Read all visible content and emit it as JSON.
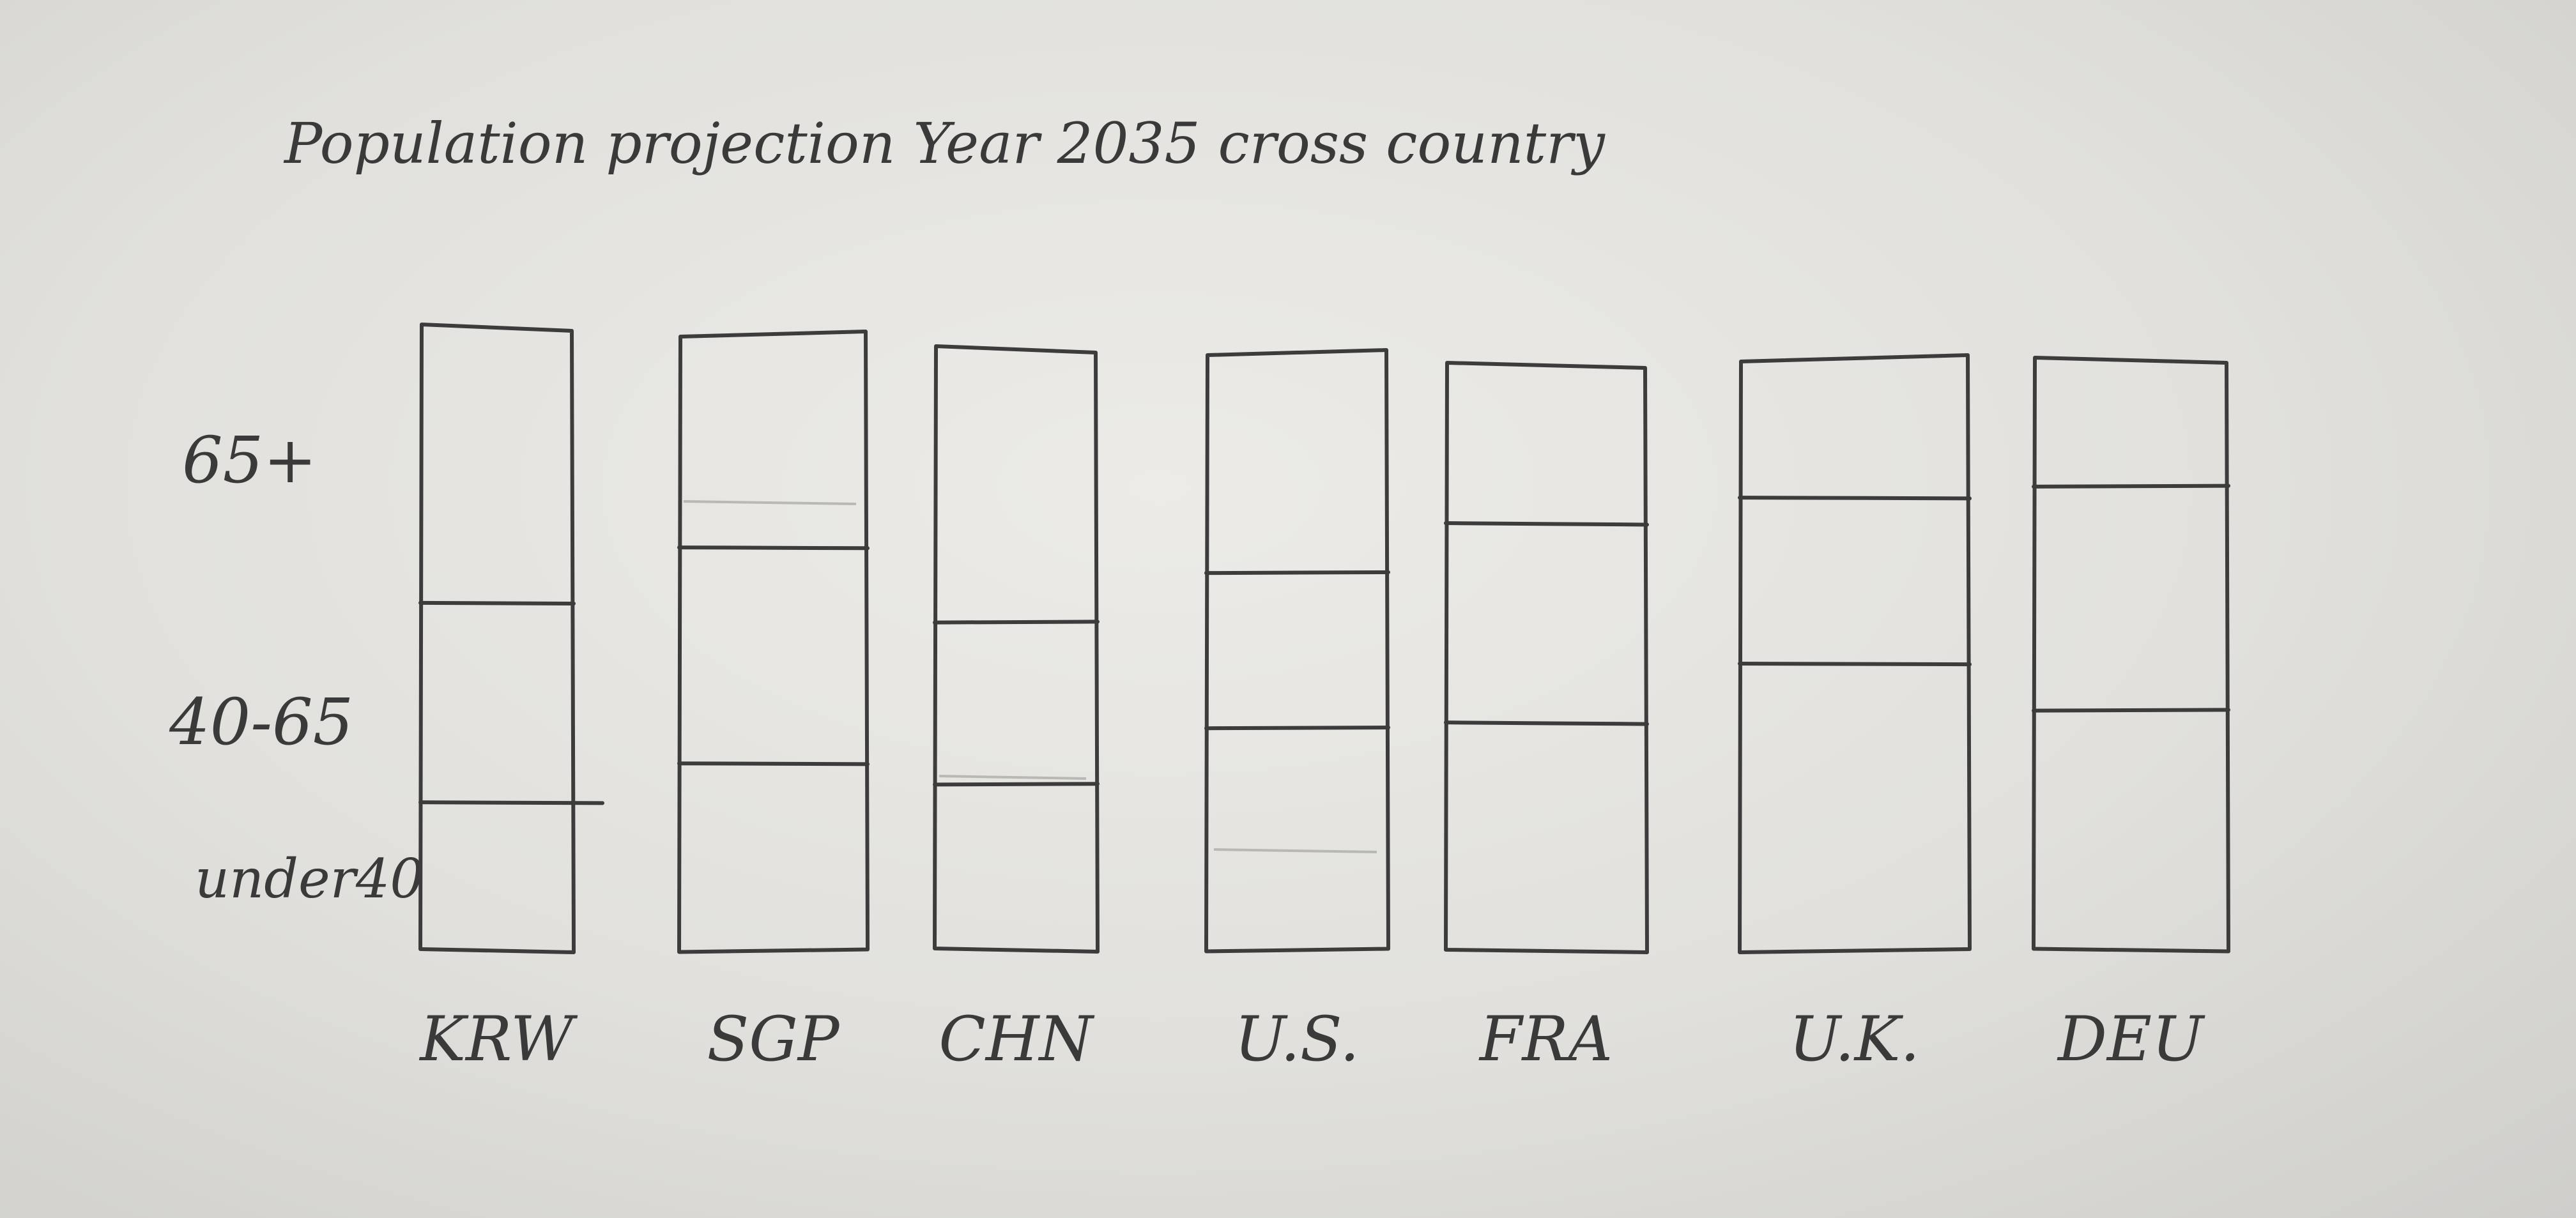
{
  "chart_data": {
    "type": "bar",
    "stacked": true,
    "title": "Population projection Year 2035 cross country",
    "categories": [
      "KRW",
      "SGP",
      "CHN",
      "U.S.",
      "FRA",
      "U.K.",
      "DEU"
    ],
    "series": [
      {
        "name": "under40",
        "values": [
          24,
          30,
          28,
          37,
          39,
          48,
          41
        ]
      },
      {
        "name": "40-65",
        "values": [
          32,
          35,
          27,
          26,
          34,
          28,
          38
        ]
      },
      {
        "name": "65+",
        "values": [
          44,
          35,
          45,
          37,
          27,
          24,
          21
        ]
      }
    ],
    "ylim": [
      0,
      100
    ],
    "grid": false,
    "legend": "left"
  },
  "colors": {
    "paper": "#e3e2de",
    "pencil": "#3c3c3c"
  }
}
